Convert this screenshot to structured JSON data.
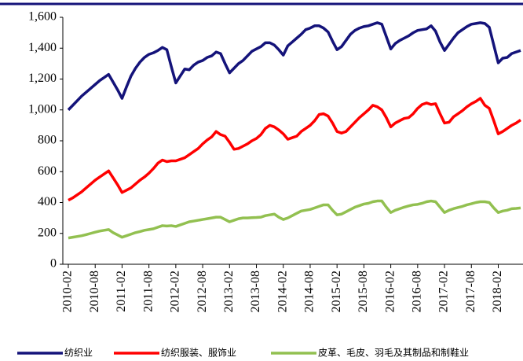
{
  "chart_data": {
    "type": "line",
    "categories": [
      "2010-02",
      null,
      null,
      null,
      null,
      null,
      "2010-08",
      null,
      null,
      null,
      null,
      null,
      "2011-02",
      null,
      null,
      null,
      null,
      null,
      "2011-08",
      null,
      null,
      null,
      null,
      null,
      "2012-02",
      null,
      null,
      null,
      null,
      null,
      "2012-08",
      null,
      null,
      null,
      null,
      null,
      "2013-02",
      null,
      null,
      null,
      null,
      null,
      "2013-08",
      null,
      null,
      null,
      null,
      null,
      "2014-02",
      null,
      null,
      null,
      null,
      null,
      "2014-08",
      null,
      null,
      null,
      null,
      null,
      "2015-02",
      null,
      null,
      null,
      null,
      null,
      "2015-08",
      null,
      null,
      null,
      null,
      null,
      "2016-02",
      null,
      null,
      null,
      null,
      null,
      "2016-08",
      null,
      null,
      null,
      null,
      null,
      "2017-02",
      null,
      null,
      null,
      null,
      null,
      "2017-08",
      null,
      null,
      null,
      null,
      null,
      "2018-02",
      null,
      null,
      null,
      null,
      null
    ],
    "series": [
      {
        "name": "纺织业",
        "color": "#14137a",
        "values": [
          1000,
          1030,
          1060,
          1090,
          1115,
          1140,
          1165,
          1190,
          1210,
          1230,
          1180,
          1130,
          1075,
          1150,
          1220,
          1270,
          1310,
          1340,
          1360,
          1370,
          1385,
          1405,
          1390,
          1280,
          1175,
          1220,
          1265,
          1260,
          1290,
          1310,
          1320,
          1340,
          1350,
          1375,
          1365,
          1300,
          1240,
          1270,
          1300,
          1320,
          1350,
          1380,
          1395,
          1410,
          1435,
          1435,
          1420,
          1390,
          1355,
          1415,
          1440,
          1465,
          1490,
          1520,
          1530,
          1545,
          1545,
          1530,
          1505,
          1445,
          1390,
          1410,
          1450,
          1490,
          1515,
          1530,
          1540,
          1545,
          1555,
          1565,
          1555,
          1475,
          1395,
          1430,
          1450,
          1465,
          1480,
          1500,
          1515,
          1520,
          1525,
          1545,
          1510,
          1440,
          1385,
          1425,
          1465,
          1500,
          1520,
          1540,
          1555,
          1560,
          1565,
          1560,
          1535,
          1420,
          1305,
          1335,
          1340,
          1365,
          1375,
          1385
        ]
      },
      {
        "name": "纺织服装、服饰业",
        "color": "#ff0000",
        "values": [
          415,
          430,
          450,
          470,
          495,
          520,
          545,
          565,
          585,
          605,
          560,
          515,
          465,
          480,
          495,
          520,
          545,
          565,
          590,
          620,
          655,
          675,
          665,
          670,
          670,
          680,
          690,
          710,
          730,
          750,
          780,
          805,
          825,
          860,
          840,
          830,
          790,
          745,
          750,
          765,
          780,
          800,
          815,
          840,
          880,
          900,
          890,
          870,
          845,
          810,
          820,
          830,
          860,
          880,
          900,
          930,
          970,
          975,
          960,
          915,
          860,
          850,
          860,
          890,
          920,
          950,
          975,
          1000,
          1030,
          1020,
          1000,
          950,
          890,
          915,
          930,
          945,
          950,
          975,
          1010,
          1035,
          1045,
          1035,
          1040,
          975,
          915,
          920,
          955,
          975,
          995,
          1020,
          1040,
          1055,
          1075,
          1030,
          1010,
          930,
          845,
          860,
          880,
          900,
          915,
          935
        ]
      },
      {
        "name": "皮革、毛皮、羽毛及其制品和制鞋业",
        "color": "#92c050",
        "values": [
          170,
          175,
          180,
          185,
          192,
          200,
          208,
          215,
          220,
          225,
          205,
          190,
          175,
          185,
          195,
          205,
          212,
          220,
          225,
          230,
          240,
          250,
          248,
          250,
          245,
          255,
          265,
          275,
          280,
          285,
          290,
          295,
          300,
          305,
          305,
          290,
          275,
          285,
          295,
          300,
          300,
          302,
          303,
          305,
          315,
          320,
          325,
          305,
          290,
          300,
          315,
          330,
          345,
          350,
          355,
          365,
          375,
          385,
          385,
          350,
          320,
          325,
          340,
          355,
          370,
          380,
          390,
          395,
          405,
          410,
          410,
          370,
          335,
          350,
          360,
          370,
          378,
          385,
          388,
          395,
          405,
          410,
          405,
          370,
          335,
          350,
          360,
          368,
          375,
          385,
          392,
          400,
          405,
          405,
          400,
          365,
          335,
          345,
          350,
          360,
          362,
          365
        ]
      }
    ],
    "ylim": [
      0,
      1600
    ],
    "yticks": [
      0,
      200,
      400,
      600,
      800,
      {
        "value": 1000,
        "label": "1,000"
      },
      {
        "value": 1200,
        "label": "1,200"
      },
      {
        "value": 1400,
        "label": "1,400"
      },
      {
        "value": 1600,
        "label": "1,600"
      }
    ],
    "grid": false
  }
}
